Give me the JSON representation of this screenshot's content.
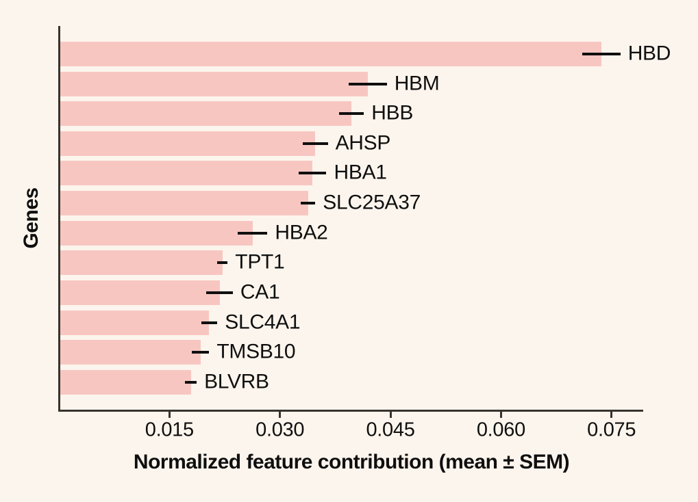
{
  "chart_data": {
    "type": "bar",
    "orientation": "horizontal",
    "title": "",
    "xlabel": "Normalized feature contribution (mean ± SEM)",
    "ylabel": "Genes",
    "categories": [
      "HBD",
      "HBM",
      "HBB",
      "AHSP",
      "HBA1",
      "SLC25A37",
      "HBA2",
      "TPT1",
      "CA1",
      "SLC4A1",
      "TMSB10",
      "BLVRB"
    ],
    "series": [
      {
        "name": "mean",
        "values": [
          0.0736,
          0.0419,
          0.0397,
          0.0348,
          0.0344,
          0.0338,
          0.0263,
          0.0222,
          0.0218,
          0.0204,
          0.0192,
          0.0179
        ]
      },
      {
        "name": "sem",
        "values": [
          0.0026,
          0.0026,
          0.0017,
          0.0017,
          0.0019,
          0.001,
          0.002,
          0.0007,
          0.0018,
          0.0011,
          0.0012,
          0.0008
        ]
      }
    ],
    "x_ticks": [
      0.015,
      0.03,
      0.045,
      0.06,
      0.075
    ],
    "x_tick_labels": [
      "0.015",
      "0.030",
      "0.045",
      "0.060",
      "0.075"
    ],
    "xlim": [
      0,
      0.0793
    ],
    "grid": false,
    "legend": "none",
    "error_bar_style": "horizontal line, no caps",
    "colors": {
      "bar": "#f8c6c1",
      "error_bar": "#0f0f0f",
      "axis": "#37332e",
      "text": "#0f0f0f",
      "background": "#fcf5ed"
    }
  }
}
